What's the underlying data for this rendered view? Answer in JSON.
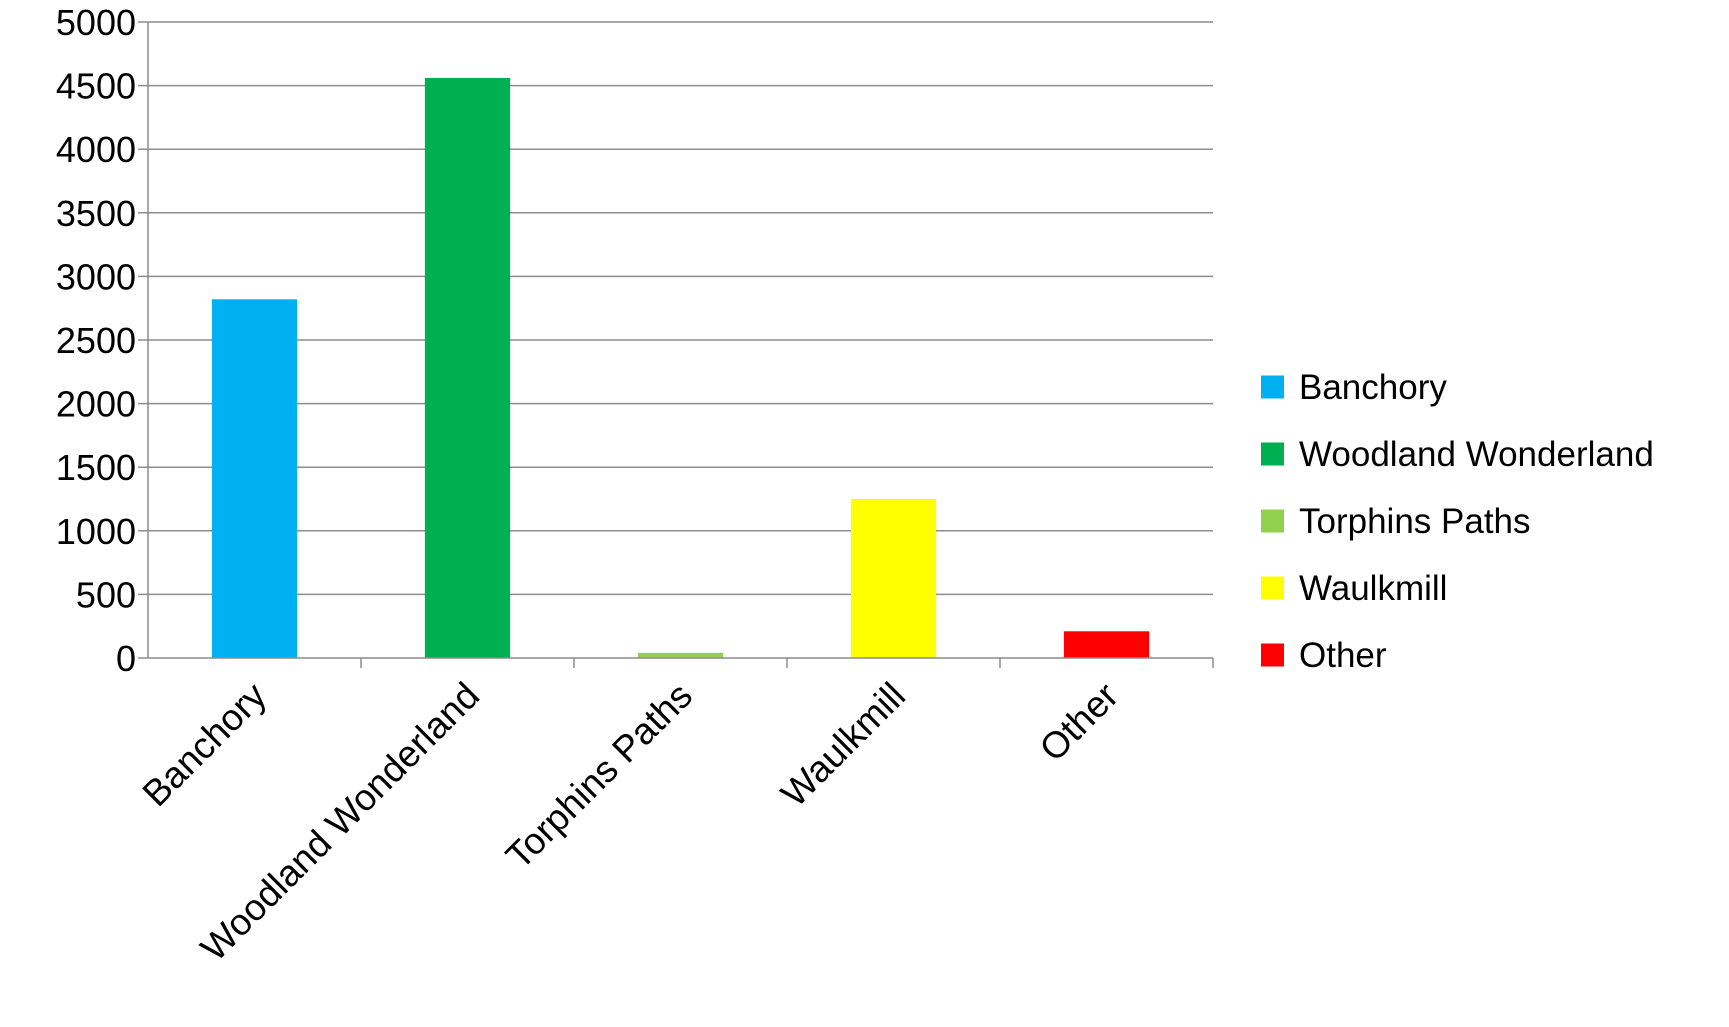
{
  "chart_data": {
    "type": "bar",
    "title": "",
    "xlabel": "",
    "ylabel": "",
    "categories": [
      "Banchory",
      "Woodland Wonderland",
      "Torphins Paths",
      "Waulkmill",
      "Other"
    ],
    "values": [
      2820,
      4560,
      40,
      1250,
      210
    ],
    "colors": [
      "#00b0f0",
      "#00b050",
      "#92d050",
      "#ffff00",
      "#ff0000"
    ],
    "ylim": [
      0,
      5000
    ],
    "yticks": [
      0,
      500,
      1000,
      1500,
      2000,
      2500,
      3000,
      3500,
      4000,
      4500,
      5000
    ],
    "ytick_labels": [
      "0",
      "500",
      "1000",
      "1500",
      "2000",
      "2500",
      "3000",
      "3500",
      "4000",
      "4500",
      "5000"
    ],
    "grid": true,
    "legend_position": "right",
    "legend": [
      "Banchory",
      "Woodland Wonderland",
      "Torphins Paths",
      "Waulkmill",
      "Other"
    ]
  }
}
